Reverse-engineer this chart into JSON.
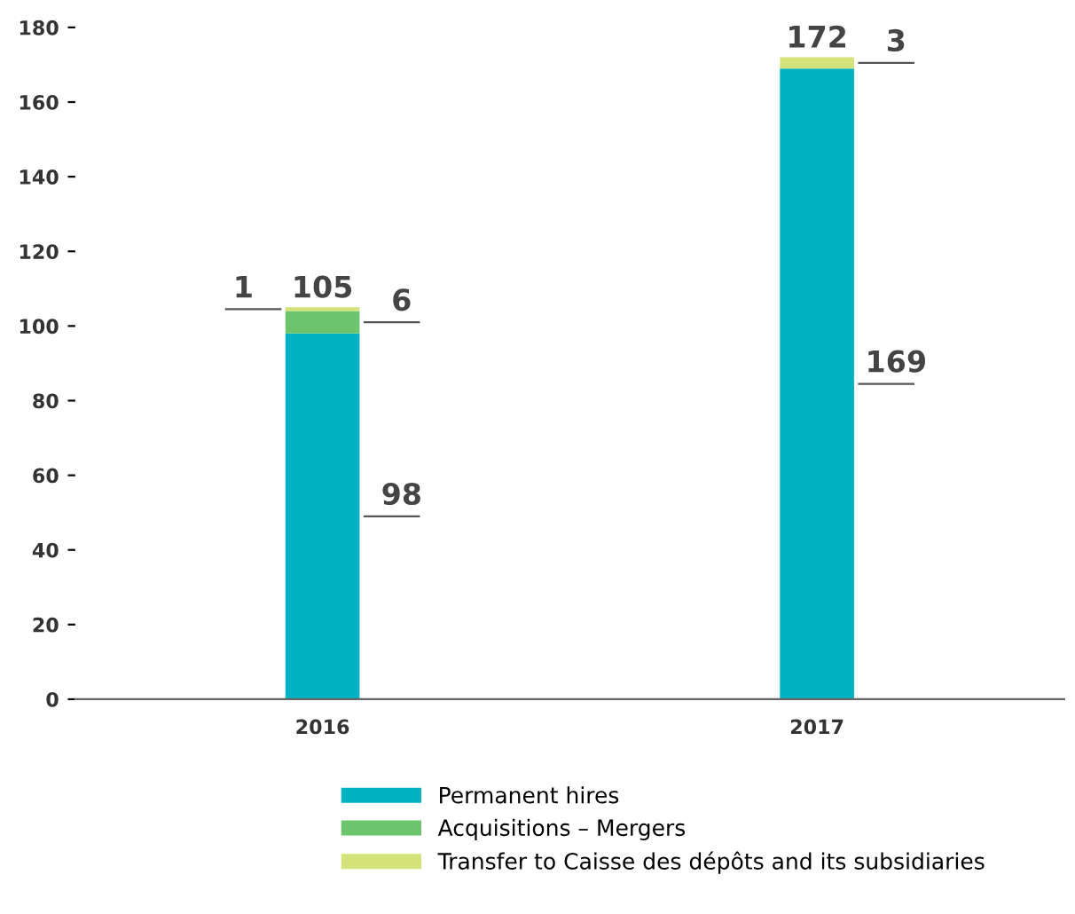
{
  "chart_data": {
    "type": "bar",
    "stacked": true,
    "categories": [
      "2016",
      "2017"
    ],
    "series": [
      {
        "name": "Permanent hires",
        "color": "#00b2c2",
        "values": [
          98,
          169
        ],
        "value_labels": [
          "98",
          "169"
        ]
      },
      {
        "name": "Acquisitions – Mergers",
        "color": "#6cc46c",
        "values": [
          6,
          0
        ],
        "value_labels": [
          "6",
          null
        ]
      },
      {
        "name": "Transfer to Caisse des dépôts and its subsidiaries",
        "color": "#d4e27a",
        "values": [
          1,
          3
        ],
        "value_labels": [
          "1",
          "3"
        ]
      }
    ],
    "totals": [
      "105",
      "172"
    ],
    "ylim": [
      0,
      180
    ],
    "yticks": [
      0,
      20,
      40,
      60,
      80,
      100,
      120,
      140,
      160,
      180
    ],
    "grid": false,
    "legend": "bottom"
  }
}
